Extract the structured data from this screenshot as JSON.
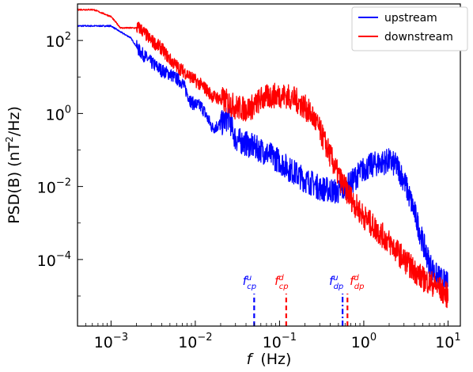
{
  "chart_data": {
    "type": "line",
    "xlabel": "f (Hz)",
    "xlabel_italic": "f",
    "xlabel_units": "(Hz)",
    "ylabel": "PSD(B) (nT²/Hz)",
    "ylabel_base": "PSD(B) (nT",
    "ylabel_sup": "2",
    "ylabel_end": "/Hz)",
    "x_scale": "log",
    "y_scale": "log",
    "xlim": [
      0.0004,
      14
    ],
    "ylim": [
      1.5e-06,
      1000
    ],
    "x_ticks": [
      {
        "value": 0.001,
        "base": "10",
        "exp": "−3"
      },
      {
        "value": 0.01,
        "base": "10",
        "exp": "−2"
      },
      {
        "value": 0.1,
        "base": "10",
        "exp": "−1"
      },
      {
        "value": 1,
        "base": "10",
        "exp": "0"
      },
      {
        "value": 10,
        "base": "10",
        "exp": "1"
      }
    ],
    "y_ticks": [
      {
        "value": 0.0001,
        "base": "10",
        "exp": "−4"
      },
      {
        "value": 0.01,
        "base": "10",
        "exp": "−2"
      },
      {
        "value": 1,
        "base": "10",
        "exp": "0"
      },
      {
        "value": 100,
        "base": "10",
        "exp": "2"
      }
    ],
    "legend_position": "top-right",
    "grid": false,
    "series": [
      {
        "name": "upstream",
        "color": "#0000ff",
        "x": [
          0.0004,
          0.00062,
          0.001,
          0.0013,
          0.0017,
          0.0022,
          0.003,
          0.004,
          0.005,
          0.007,
          0.009,
          0.012,
          0.016,
          0.02,
          0.025,
          0.03,
          0.04,
          0.05,
          0.06,
          0.08,
          0.1,
          0.13,
          0.17,
          0.2,
          0.25,
          0.3,
          0.4,
          0.5,
          0.6,
          0.7,
          0.8,
          1.0,
          1.3,
          1.6,
          2.0,
          2.5,
          3.0,
          4.0,
          5.0,
          6.0,
          7.0,
          8.0,
          10.0
        ],
        "y": [
          250,
          250,
          250,
          170,
          120,
          50,
          25,
          15,
          12,
          7,
          2,
          1.5,
          0.4,
          0.5,
          0.8,
          0.2,
          0.15,
          0.12,
          0.1,
          0.07,
          0.05,
          0.03,
          0.02,
          0.015,
          0.012,
          0.009,
          0.008,
          0.007,
          0.009,
          0.012,
          0.018,
          0.03,
          0.04,
          0.045,
          0.05,
          0.035,
          0.015,
          0.002,
          0.0003,
          8e-05,
          4e-05,
          3e-05,
          2e-05
        ]
      },
      {
        "name": "downstream",
        "color": "#ff0000",
        "x": [
          0.0004,
          0.00062,
          0.001,
          0.0013,
          0.0017,
          0.0022,
          0.003,
          0.004,
          0.005,
          0.006,
          0.008,
          0.01,
          0.013,
          0.016,
          0.02,
          0.025,
          0.03,
          0.04,
          0.05,
          0.06,
          0.08,
          0.1,
          0.12,
          0.15,
          0.2,
          0.25,
          0.3,
          0.35,
          0.4,
          0.5,
          0.6,
          0.7,
          0.8,
          1.0,
          1.3,
          1.6,
          2.0,
          3.0,
          4.0,
          5.0,
          7.0,
          10.0
        ],
        "y": [
          700,
          700,
          450,
          220,
          220,
          220,
          100,
          60,
          30,
          20,
          12,
          8,
          5,
          3,
          2.5,
          2,
          1.5,
          1.3,
          1.6,
          2.5,
          3,
          3.2,
          3,
          2.5,
          1.5,
          0.8,
          0.35,
          0.15,
          0.07,
          0.02,
          0.009,
          0.005,
          0.003,
          0.0015,
          0.0008,
          0.0005,
          0.0003,
          0.0001,
          5e-05,
          3e-05,
          2e-05,
          1e-05
        ]
      }
    ],
    "annotations": [
      {
        "label": "f",
        "sup": "u",
        "sub": "cp",
        "color": "#0000ff",
        "x": 0.05,
        "style": "dashed"
      },
      {
        "label": "f",
        "sup": "d",
        "sub": "cp",
        "color": "#ff0000",
        "x": 0.12,
        "style": "dashed"
      },
      {
        "label": "f",
        "sup": "u",
        "sub": "dp",
        "color": "#0000ff",
        "x": 0.56,
        "style": "dashdot"
      },
      {
        "label": "f",
        "sup": "d",
        "sub": "dp",
        "color": "#ff0000",
        "x": 0.64,
        "style": "dashed"
      }
    ]
  }
}
